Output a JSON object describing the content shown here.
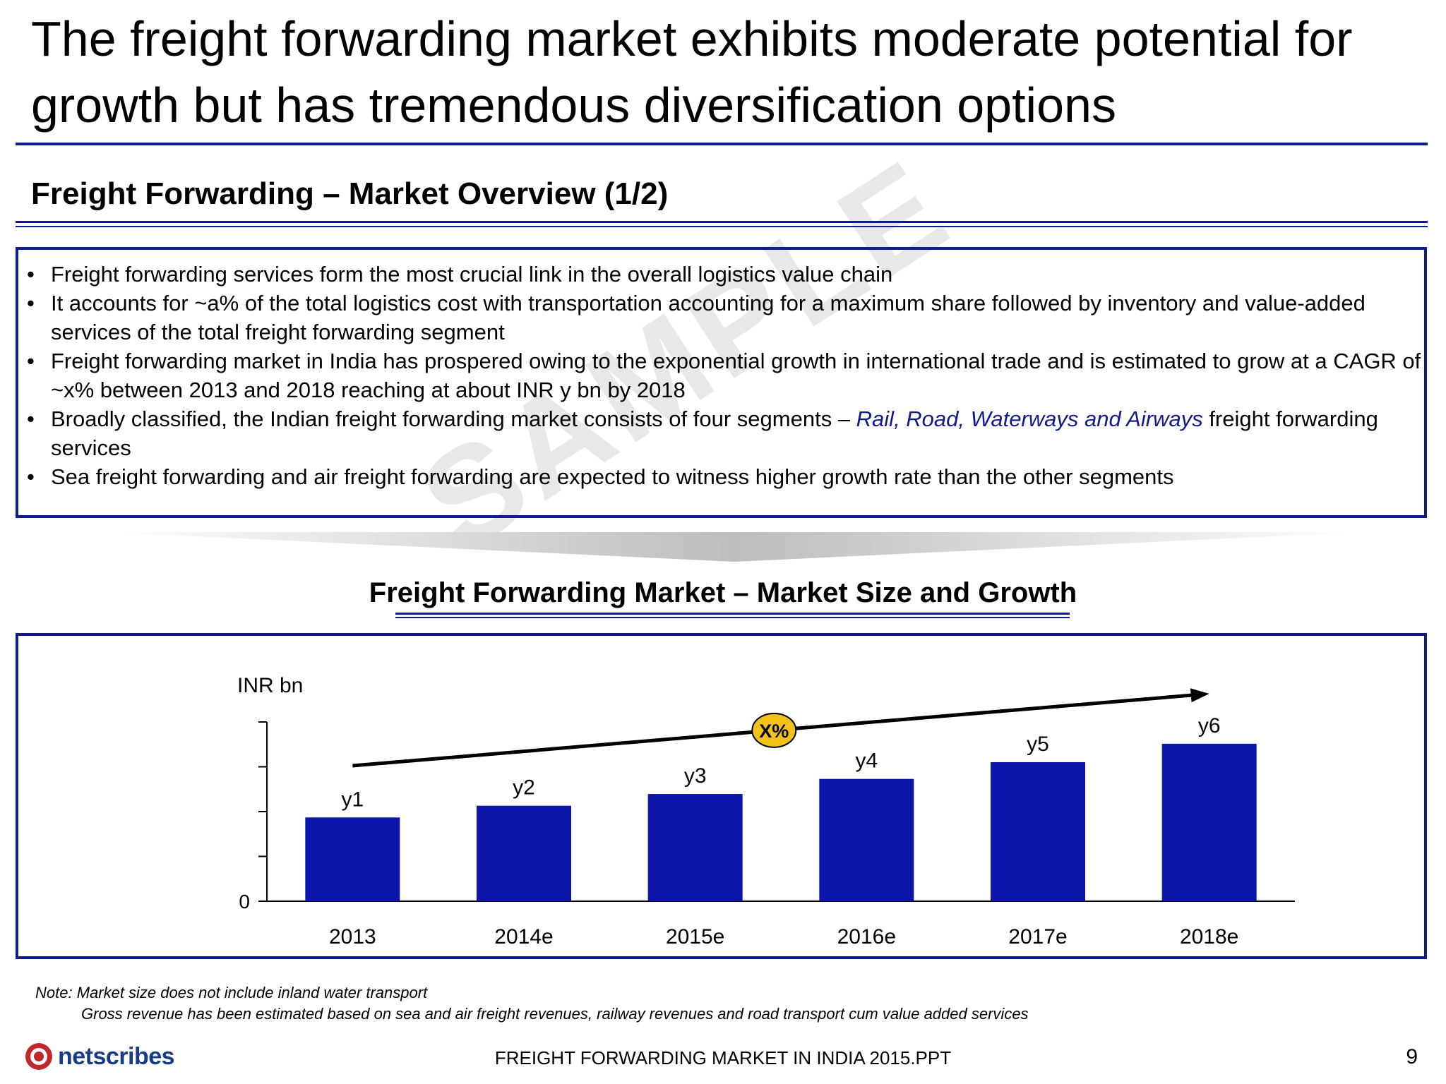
{
  "slide": {
    "title": "The freight forwarding market exhibits moderate potential for growth but has tremendous diversification options",
    "section_title": "Freight Forwarding – Market Overview (1/2)",
    "watermark": "SAMPLE"
  },
  "overview": {
    "bullets": [
      {
        "text": "Freight forwarding services form the most crucial link in the overall logistics value chain"
      },
      {
        "text": "It accounts for ~a% of the total logistics cost with transportation accounting for a maximum share followed by inventory and value-added services of the total freight forwarding segment"
      },
      {
        "text": "Freight forwarding market in India has prospered owing to the exponential growth in international trade and is estimated to grow at a CAGR of ~x% between 2013 and 2018 reaching at about INR y bn by 2018"
      },
      {
        "text_before": "Broadly classified, the Indian freight forwarding market consists of four segments – ",
        "highlight": "Rail, Road, Waterways and Airways",
        "text_after": " freight forwarding services"
      },
      {
        "text": "Sea freight forwarding and air freight forwarding are expected to witness higher growth rate than the other segments"
      }
    ]
  },
  "chart_section": {
    "title": "Freight Forwarding Market – Market Size and Growth"
  },
  "chart_data": {
    "type": "bar",
    "categories": [
      "2013",
      "2014e",
      "2015e",
      "2016e",
      "2017e",
      "2018e"
    ],
    "values": [
      1.0,
      1.14,
      1.28,
      1.46,
      1.66,
      1.88
    ],
    "data_labels": [
      "y1",
      "y2",
      "y3",
      "y4",
      "y5",
      "y6"
    ],
    "ylabel": "INR bn",
    "ylim": [
      0,
      2.14
    ],
    "y_tick_labels": [
      "0"
    ],
    "cagr_label": "X%",
    "bar_color": "#0d16a8",
    "badge_color": "#f2c21b",
    "grid": false,
    "legend": "none"
  },
  "notes": {
    "line1": "Note: Market size does not include inland water transport",
    "line2": "Gross revenue has been estimated based on sea and air freight revenues, railway revenues and road transport cum value added services"
  },
  "footer": {
    "logo_text": "netscribes",
    "title": "FREIGHT FORWARDING MARKET IN INDIA 2015.PPT",
    "page_number": "9"
  },
  "colors": {
    "accent": "#0f1a8c",
    "bar": "#0d16a8",
    "badge": "#f2c21b",
    "logo_red": "#c0282d"
  },
  "icons": {
    "logo": "netscribes-logo-icon",
    "arrow": "growth-arrow-icon"
  }
}
